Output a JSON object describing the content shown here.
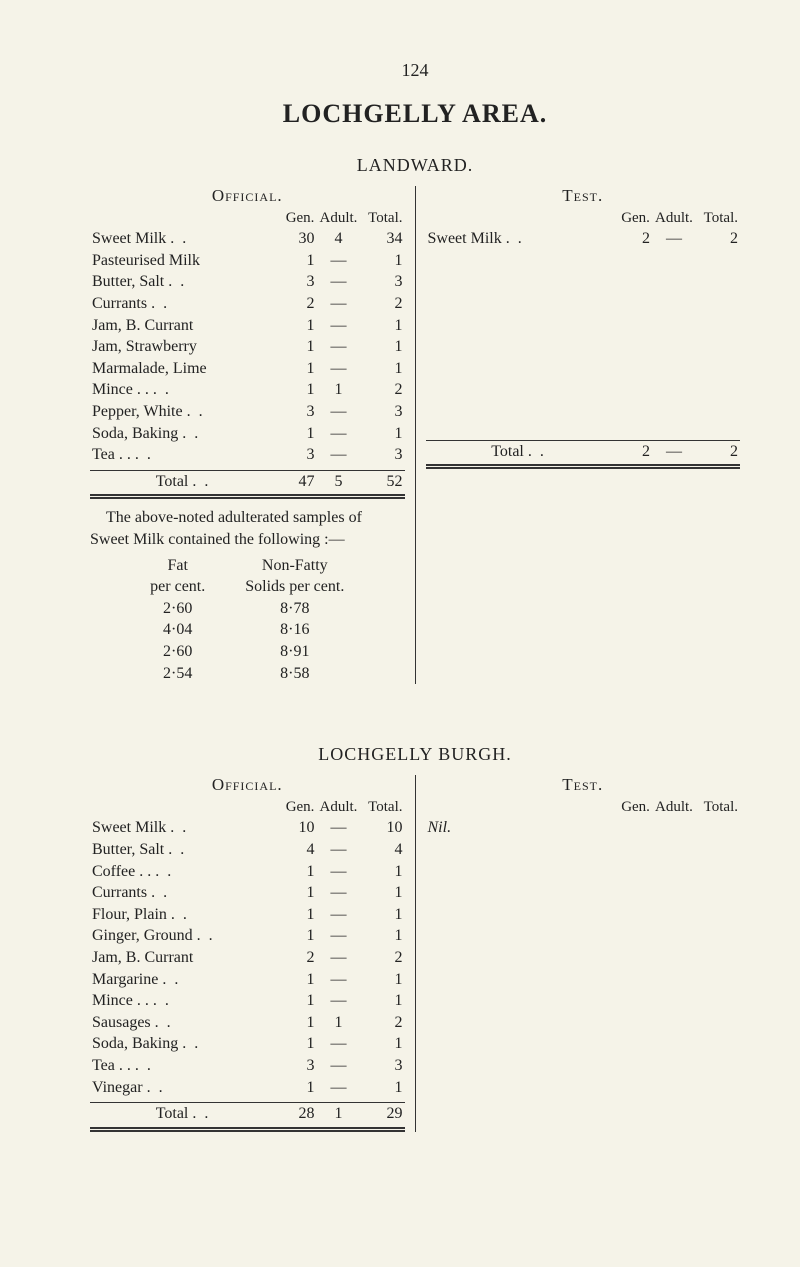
{
  "page_number": "124",
  "title": "LOCHGELLY AREA.",
  "dash": "—",
  "dots": ". .",
  "landward": {
    "subtitle": "LANDWARD.",
    "official_label": "Official.",
    "test_label": "Test.",
    "col_gen": "Gen.",
    "col_adult": "Adult.",
    "col_total": "Total.",
    "official_rows": [
      {
        "label": "Sweet Milk",
        "dots": ". .",
        "gen": "30",
        "adult": "4",
        "total": "34"
      },
      {
        "label": "Pasteurised Milk",
        "dots": "",
        "gen": "1",
        "adult": "—",
        "total": "1"
      },
      {
        "label": "Butter, Salt",
        "dots": ". .",
        "gen": "3",
        "adult": "—",
        "total": "3"
      },
      {
        "label": "Currants",
        "dots": ". .",
        "gen": "2",
        "adult": "—",
        "total": "2"
      },
      {
        "label": "Jam, B. Currant",
        "dots": "",
        "gen": "1",
        "adult": "—",
        "total": "1"
      },
      {
        "label": "Jam, Strawberry",
        "dots": "",
        "gen": "1",
        "adult": "—",
        "total": "1"
      },
      {
        "label": "Marmalade, Lime",
        "dots": "",
        "gen": "1",
        "adult": "—",
        "total": "1"
      },
      {
        "label": "Mince . .",
        "dots": ". .",
        "gen": "1",
        "adult": "1",
        "total": "2"
      },
      {
        "label": "Pepper, White",
        "dots": ". .",
        "gen": "3",
        "adult": "—",
        "total": "3"
      },
      {
        "label": "Soda, Baking",
        "dots": ". .",
        "gen": "1",
        "adult": "—",
        "total": "1"
      },
      {
        "label": "Tea     . .",
        "dots": ". .",
        "gen": "3",
        "adult": "—",
        "total": "3"
      }
    ],
    "official_total": {
      "label": "Total",
      "dots": ". .",
      "gen": "47",
      "adult": "5",
      "total": "52"
    },
    "test_row": {
      "label": "Sweet Milk",
      "dots": ". .",
      "gen": "2",
      "adult": "—",
      "total": "2"
    },
    "test_total": {
      "label": "Total",
      "dots": ". .",
      "gen": "2",
      "adult": "—",
      "total": "2"
    },
    "note": "The above-noted adulterated samples of Sweet Milk contained the follow­ing :—",
    "fat_head": "Fat",
    "fat_sub": "per cent.",
    "nf_head": "Non-Fatty",
    "nf_sub": "Solids per cent.",
    "fat_rows": [
      {
        "f": "2·60",
        "s": "8·78"
      },
      {
        "f": "4·04",
        "s": "8·16"
      },
      {
        "f": "2·60",
        "s": "8·91"
      },
      {
        "f": "2·54",
        "s": "8·58"
      }
    ]
  },
  "burgh": {
    "subtitle": "LOCHGELLY BURGH.",
    "official_label": "Official.",
    "test_label": "Test.",
    "col_gen": "Gen.",
    "col_adult": "Adult.",
    "col_total": "Total.",
    "nil": "Nil.",
    "official_rows": [
      {
        "label": "Sweet Milk",
        "dots": ". .",
        "gen": "10",
        "adult": "—",
        "total": "10"
      },
      {
        "label": "Butter, Salt",
        "dots": ". .",
        "gen": "4",
        "adult": "—",
        "total": "4"
      },
      {
        "label": "Coffee . .",
        "dots": ". .",
        "gen": "1",
        "adult": "—",
        "total": "1"
      },
      {
        "label": "Currants",
        "dots": ". .",
        "gen": "1",
        "adult": "—",
        "total": "1"
      },
      {
        "label": "Flour, Plain",
        "dots": ". .",
        "gen": "1",
        "adult": "—",
        "total": "1"
      },
      {
        "label": "Ginger, Ground",
        "dots": ". .",
        "gen": "1",
        "adult": "—",
        "total": "1"
      },
      {
        "label": "Jam, B. Currant",
        "dots": "",
        "gen": "2",
        "adult": "—",
        "total": "2"
      },
      {
        "label": "Margarine",
        "dots": ". .",
        "gen": "1",
        "adult": "—",
        "total": "1"
      },
      {
        "label": "Mince . .",
        "dots": ". .",
        "gen": "1",
        "adult": "—",
        "total": "1"
      },
      {
        "label": "Sausages",
        "dots": ". .",
        "gen": "1",
        "adult": "1",
        "total": "2"
      },
      {
        "label": "Soda, Baking",
        "dots": ". .",
        "gen": "1",
        "adult": "—",
        "total": "1"
      },
      {
        "label": "Tea     . .",
        "dots": ". .",
        "gen": "3",
        "adult": "—",
        "total": "3"
      },
      {
        "label": "Vinegar",
        "dots": ". .",
        "gen": "1",
        "adult": "—",
        "total": "1"
      }
    ],
    "official_total": {
      "label": "Total",
      "dots": ". .",
      "gen": "28",
      "adult": "1",
      "total": "29"
    }
  }
}
